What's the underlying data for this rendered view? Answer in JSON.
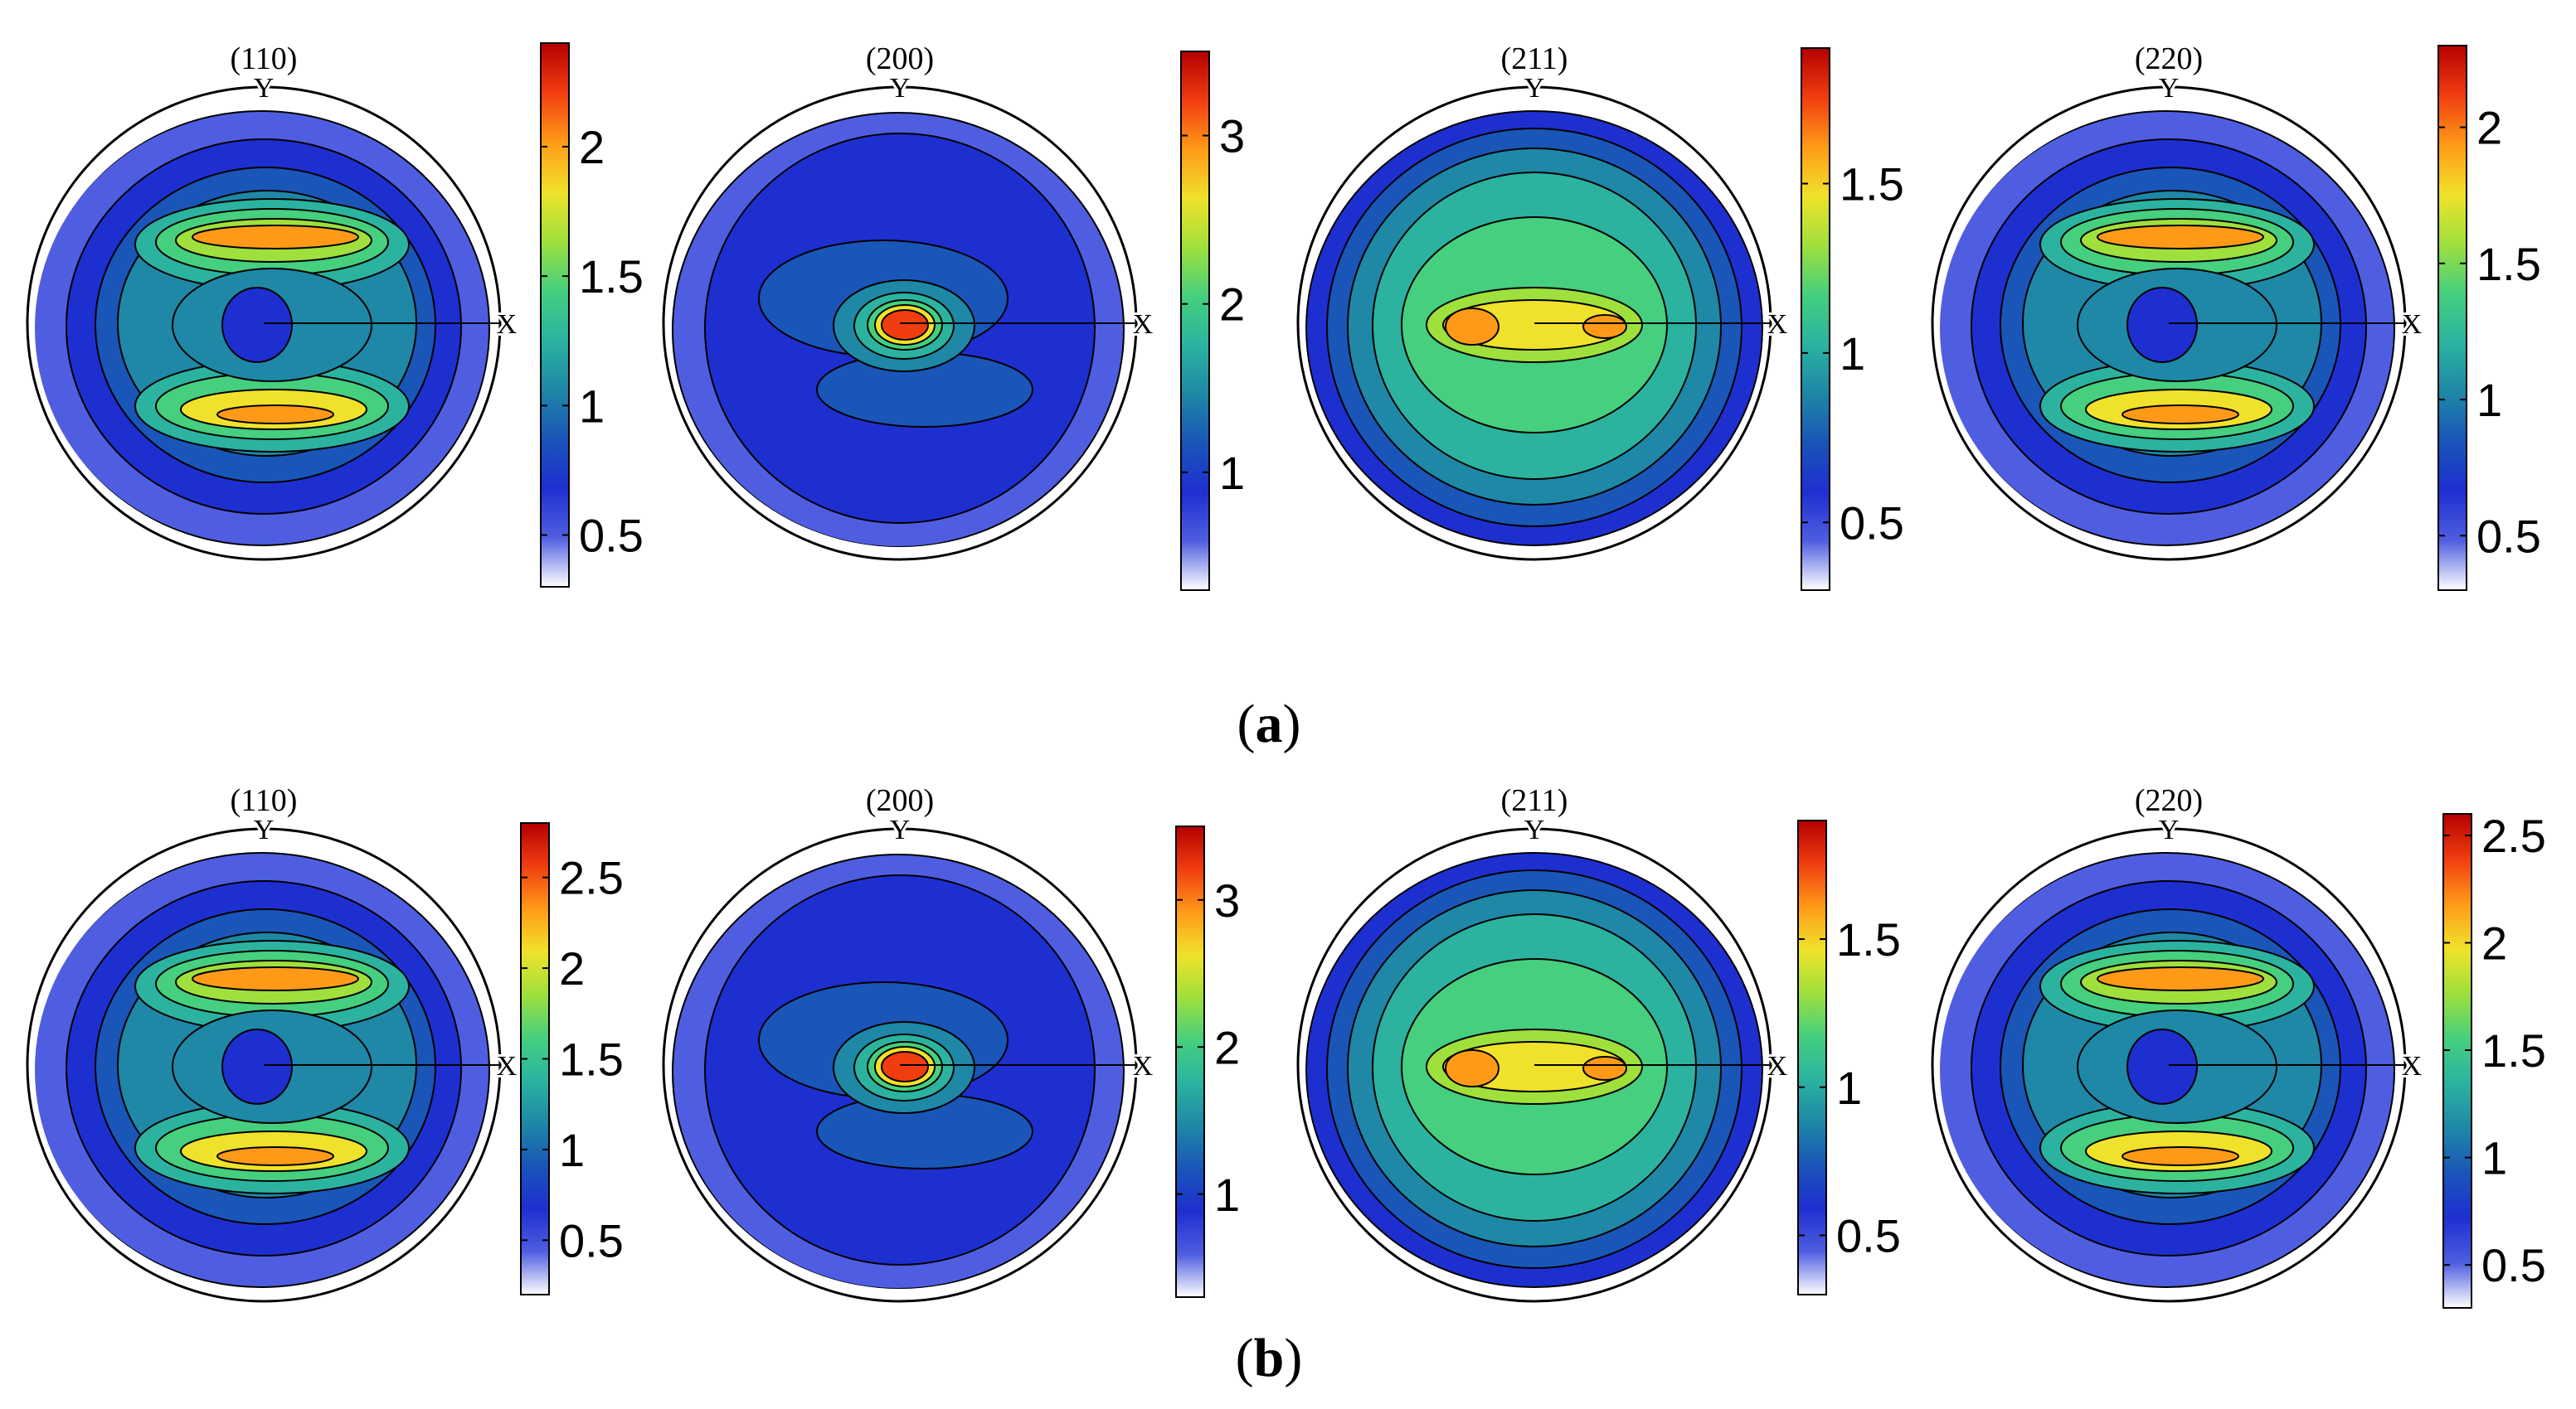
{
  "figure": {
    "palette": [
      "#ffffff",
      "#4f5ee0",
      "#1e2fd0",
      "#1a55b8",
      "#1e88a6",
      "#2bb3a0",
      "#45cf7e",
      "#9fe03c",
      "#f0e22a",
      "#ff9a18",
      "#f03d10",
      "#b40000"
    ],
    "rows": [
      {
        "label": "a",
        "panels": [
          {
            "title": "(110)",
            "y_label": "Y",
            "x_label": "X",
            "pattern": "band",
            "colorbar_ticks": [
              "2",
              "1.5",
              "1",
              "0.5"
            ],
            "colorbar_range": [
              0.3,
              2.4
            ]
          },
          {
            "title": "(200)",
            "y_label": "Y",
            "x_label": "X",
            "pattern": "spot",
            "colorbar_ticks": [
              "3",
              "2",
              "1"
            ],
            "colorbar_range": [
              0.3,
              3.5
            ]
          },
          {
            "title": "(211)",
            "y_label": "Y",
            "x_label": "X",
            "pattern": "ring",
            "colorbar_ticks": [
              "1.5",
              "1",
              "0.5"
            ],
            "colorbar_range": [
              0.3,
              1.9
            ]
          },
          {
            "title": "(220)",
            "y_label": "Y",
            "x_label": "X",
            "pattern": "band",
            "colorbar_ticks": [
              "2",
              "1.5",
              "1",
              "0.5"
            ],
            "colorbar_range": [
              0.3,
              2.3
            ]
          }
        ]
      },
      {
        "label": "b",
        "panels": [
          {
            "title": "(110)",
            "y_label": "Y",
            "x_label": "X",
            "pattern": "band",
            "colorbar_ticks": [
              "2.5",
              "2",
              "1.5",
              "1",
              "0.5"
            ],
            "colorbar_range": [
              0.2,
              2.8
            ]
          },
          {
            "title": "(200)",
            "y_label": "Y",
            "x_label": "X",
            "pattern": "spot",
            "colorbar_ticks": [
              "3",
              "2",
              "1"
            ],
            "colorbar_range": [
              0.3,
              3.5
            ]
          },
          {
            "title": "(211)",
            "y_label": "Y",
            "x_label": "X",
            "pattern": "ring",
            "colorbar_ticks": [
              "1.5",
              "1",
              "0.5"
            ],
            "colorbar_range": [
              0.3,
              1.9
            ]
          },
          {
            "title": "(220)",
            "y_label": "Y",
            "x_label": "X",
            "pattern": "band",
            "colorbar_ticks": [
              "2.5",
              "2",
              "1.5",
              "1",
              "0.5"
            ],
            "colorbar_range": [
              0.3,
              2.6
            ]
          }
        ]
      }
    ]
  }
}
